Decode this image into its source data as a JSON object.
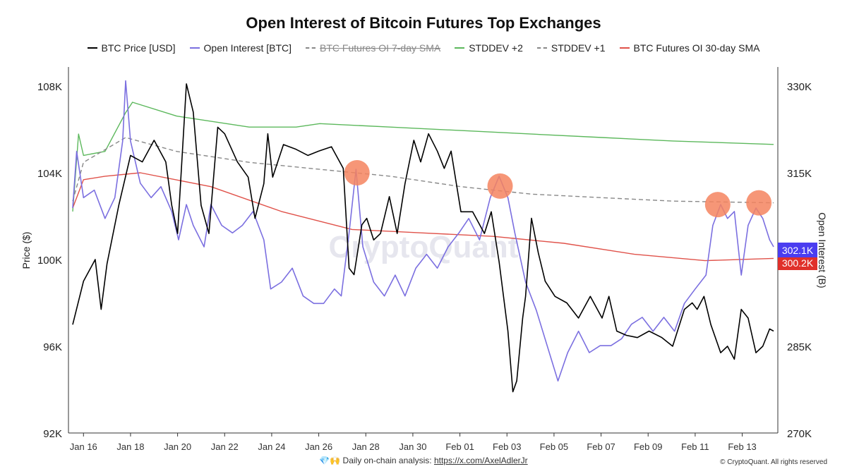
{
  "chart_data": {
    "type": "line",
    "title": "Open Interest of Bitcoin Futures Top Exchanges",
    "ylabel_left": "Price ($)",
    "ylabel_right": "Open Interest (B)",
    "year": 2025,
    "xlim": [
      "2025-01-15T13",
      "2025-02-14T08"
    ],
    "ylim_left": [
      92,
      108.8
    ],
    "ylim_right": [
      270,
      333
    ],
    "x_ticks": [
      "Jan 16",
      "Jan 18",
      "Jan 20",
      "Jan 22",
      "Jan 24",
      "Jan 26",
      "Jan 28",
      "Jan 30",
      "Feb 01",
      "Feb 03",
      "Feb 05",
      "Feb 07",
      "Feb 09",
      "Feb 11",
      "Feb 13"
    ],
    "x_tick_dates": [
      "2025-01-16T00",
      "2025-01-18T00",
      "2025-01-20T00",
      "2025-01-22T00",
      "2025-01-24T00",
      "2025-01-26T00",
      "2025-01-28T00",
      "2025-01-30T00",
      "2025-02-01T00",
      "2025-02-03T00",
      "2025-02-05T00",
      "2025-02-07T00",
      "2025-02-09T00",
      "2025-02-11T00",
      "2025-02-13T00"
    ],
    "y_ticks_left": [
      {
        "v": 108,
        "label": "108K"
      },
      {
        "v": 104,
        "label": "104K"
      },
      {
        "v": 100,
        "label": "100K"
      },
      {
        "v": 96,
        "label": "96K"
      },
      {
        "v": 92,
        "label": "92K"
      }
    ],
    "y_ticks_right": [
      {
        "v": 330,
        "label": "330K"
      },
      {
        "v": 315,
        "label": "315K"
      },
      {
        "v": 285,
        "label": "285K"
      },
      {
        "v": 270,
        "label": "270K"
      }
    ],
    "grid": false,
    "legend_position": "top",
    "watermark": "CryptoQuant",
    "series": [
      {
        "name": "BTC Price [USD]",
        "axis": "left",
        "color": "#000000",
        "dash": false,
        "hidden": false,
        "unit": "K USD",
        "points": [
          [
            "2025-01-15T13",
            97.0
          ],
          [
            "2025-01-16T00",
            99.0
          ],
          [
            "2025-01-16T12",
            100.0
          ],
          [
            "2025-01-16T18",
            97.7
          ],
          [
            "2025-01-17T00",
            99.8
          ],
          [
            "2025-01-17T12",
            102.5
          ],
          [
            "2025-01-18T00",
            104.8
          ],
          [
            "2025-01-18T12",
            104.5
          ],
          [
            "2025-01-19T00",
            105.5
          ],
          [
            "2025-01-19T12",
            104.5
          ],
          [
            "2025-01-19T18",
            102.5
          ],
          [
            "2025-01-20T00",
            101.2
          ],
          [
            "2025-01-20T09",
            108.1
          ],
          [
            "2025-01-20T16",
            106.8
          ],
          [
            "2025-01-21T00",
            102.5
          ],
          [
            "2025-01-21T08",
            101.2
          ],
          [
            "2025-01-21T17",
            106.1
          ],
          [
            "2025-01-22T00",
            105.8
          ],
          [
            "2025-01-22T13",
            104.5
          ],
          [
            "2025-01-23T00",
            103.8
          ],
          [
            "2025-01-23T07",
            101.9
          ],
          [
            "2025-01-23T16",
            103.5
          ],
          [
            "2025-01-23T20",
            105.8
          ],
          [
            "2025-01-24T01",
            103.8
          ],
          [
            "2025-01-24T12",
            105.3
          ],
          [
            "2025-01-25T00",
            105.1
          ],
          [
            "2025-01-25T13",
            104.8
          ],
          [
            "2025-01-26T00",
            105.0
          ],
          [
            "2025-01-26T13",
            105.2
          ],
          [
            "2025-01-27T01",
            104.2
          ],
          [
            "2025-01-27T07",
            99.6
          ],
          [
            "2025-01-27T12",
            99.3
          ],
          [
            "2025-01-27T20",
            101.6
          ],
          [
            "2025-01-28T01",
            101.9
          ],
          [
            "2025-01-28T08",
            100.9
          ],
          [
            "2025-01-28T15",
            101.2
          ],
          [
            "2025-01-29T00",
            102.9
          ],
          [
            "2025-01-29T08",
            101.2
          ],
          [
            "2025-01-29T16",
            103.5
          ],
          [
            "2025-01-30T01",
            105.5
          ],
          [
            "2025-01-30T08",
            104.5
          ],
          [
            "2025-01-30T16",
            105.8
          ],
          [
            "2025-01-31T01",
            105.0
          ],
          [
            "2025-01-31T08",
            104.2
          ],
          [
            "2025-01-31T15",
            105.0
          ],
          [
            "2025-02-01T01",
            102.2
          ],
          [
            "2025-02-01T13",
            102.2
          ],
          [
            "2025-02-02T01",
            101.2
          ],
          [
            "2025-02-02T08",
            102.2
          ],
          [
            "2025-02-02T16",
            99.9
          ],
          [
            "2025-02-03T01",
            96.7
          ],
          [
            "2025-02-03T06",
            93.9
          ],
          [
            "2025-02-03T10",
            94.4
          ],
          [
            "2025-02-03T16",
            97.3
          ],
          [
            "2025-02-03T19",
            98.3
          ],
          [
            "2025-02-04T01",
            101.9
          ],
          [
            "2025-02-04T08",
            100.3
          ],
          [
            "2025-02-04T15",
            99.0
          ],
          [
            "2025-02-05T01",
            98.3
          ],
          [
            "2025-02-05T13",
            98.0
          ],
          [
            "2025-02-06T01",
            97.3
          ],
          [
            "2025-02-06T13",
            98.3
          ],
          [
            "2025-02-07T01",
            97.3
          ],
          [
            "2025-02-07T08",
            98.3
          ],
          [
            "2025-02-07T16",
            96.7
          ],
          [
            "2025-02-08T02",
            96.5
          ],
          [
            "2025-02-08T13",
            96.4
          ],
          [
            "2025-02-09T01",
            96.7
          ],
          [
            "2025-02-09T14",
            96.4
          ],
          [
            "2025-02-10T01",
            96.0
          ],
          [
            "2025-02-10T13",
            97.7
          ],
          [
            "2025-02-10T21",
            98.0
          ],
          [
            "2025-02-11T02",
            97.7
          ],
          [
            "2025-02-11T09",
            98.3
          ],
          [
            "2025-02-11T16",
            97.0
          ],
          [
            "2025-02-12T02",
            95.7
          ],
          [
            "2025-02-12T09",
            96.0
          ],
          [
            "2025-02-12T16",
            95.4
          ],
          [
            "2025-02-12T23",
            97.7
          ],
          [
            "2025-02-13T06",
            97.3
          ],
          [
            "2025-02-13T14",
            95.7
          ],
          [
            "2025-02-13T21",
            96.0
          ],
          [
            "2025-02-14T04",
            96.8
          ],
          [
            "2025-02-14T08",
            96.7
          ]
        ]
      },
      {
        "name": "Open Interest [BTC]",
        "axis": "right",
        "color": "#7b6fe0",
        "dash": false,
        "hidden": false,
        "unit": "K",
        "last_label": "302.1K",
        "label_color": "#4b3df0",
        "points": [
          [
            "2025-01-15T13",
            308.9
          ],
          [
            "2025-01-15T17",
            318.7
          ],
          [
            "2025-01-16T00",
            310.7
          ],
          [
            "2025-01-16T11",
            312.0
          ],
          [
            "2025-01-16T22",
            307.1
          ],
          [
            "2025-01-17T08",
            310.7
          ],
          [
            "2025-01-17T16",
            320.5
          ],
          [
            "2025-01-17T19",
            330.9
          ],
          [
            "2025-01-18T00",
            320.5
          ],
          [
            "2025-01-18T10",
            313.2
          ],
          [
            "2025-01-18T21",
            310.7
          ],
          [
            "2025-01-19T07",
            312.6
          ],
          [
            "2025-01-19T18",
            308.3
          ],
          [
            "2025-01-20T01",
            303.4
          ],
          [
            "2025-01-20T09",
            309.5
          ],
          [
            "2025-01-20T16",
            305.9
          ],
          [
            "2025-01-21T03",
            302.2
          ],
          [
            "2025-01-21T10",
            309.5
          ],
          [
            "2025-01-21T21",
            305.9
          ],
          [
            "2025-01-22T08",
            304.6
          ],
          [
            "2025-01-22T18",
            305.9
          ],
          [
            "2025-01-23T05",
            308.3
          ],
          [
            "2025-01-23T16",
            303.4
          ],
          [
            "2025-01-23T23",
            294.9
          ],
          [
            "2025-01-24T10",
            296.1
          ],
          [
            "2025-01-24T21",
            298.5
          ],
          [
            "2025-01-25T08",
            293.7
          ],
          [
            "2025-01-25T19",
            292.4
          ],
          [
            "2025-01-26T05",
            292.4
          ],
          [
            "2025-01-26T16",
            294.9
          ],
          [
            "2025-01-26T23",
            293.7
          ],
          [
            "2025-01-27T07",
            304.6
          ],
          [
            "2025-01-27T14",
            315.6
          ],
          [
            "2025-01-27T21",
            302.2
          ],
          [
            "2025-01-28T08",
            296.1
          ],
          [
            "2025-01-28T19",
            293.7
          ],
          [
            "2025-01-29T06",
            297.3
          ],
          [
            "2025-01-29T16",
            293.7
          ],
          [
            "2025-01-30T03",
            298.5
          ],
          [
            "2025-01-30T14",
            300.9
          ],
          [
            "2025-01-31T01",
            298.5
          ],
          [
            "2025-01-31T12",
            302.2
          ],
          [
            "2025-01-31T23",
            304.6
          ],
          [
            "2025-02-01T09",
            307.1
          ],
          [
            "2025-02-01T20",
            303.4
          ],
          [
            "2025-02-02T07",
            310.7
          ],
          [
            "2025-02-02T16",
            314.4
          ],
          [
            "2025-02-03T01",
            310.7
          ],
          [
            "2025-02-03T08",
            304.6
          ],
          [
            "2025-02-03T19",
            296.1
          ],
          [
            "2025-02-04T06",
            291.2
          ],
          [
            "2025-02-04T17",
            285.1
          ],
          [
            "2025-02-05T04",
            279.0
          ],
          [
            "2025-02-05T14",
            283.9
          ],
          [
            "2025-02-06T01",
            287.6
          ],
          [
            "2025-02-06T12",
            283.9
          ],
          [
            "2025-02-06T23",
            285.1
          ],
          [
            "2025-02-07T10",
            285.1
          ],
          [
            "2025-02-07T21",
            286.3
          ],
          [
            "2025-02-08T07",
            288.8
          ],
          [
            "2025-02-08T18",
            290.0
          ],
          [
            "2025-02-09T05",
            287.6
          ],
          [
            "2025-02-09T16",
            290.0
          ],
          [
            "2025-02-10T03",
            287.6
          ],
          [
            "2025-02-10T13",
            292.4
          ],
          [
            "2025-02-11T00",
            294.9
          ],
          [
            "2025-02-11T11",
            297.3
          ],
          [
            "2025-02-11T18",
            305.9
          ],
          [
            "2025-02-12T02",
            309.5
          ],
          [
            "2025-02-12T09",
            307.1
          ],
          [
            "2025-02-12T16",
            308.3
          ],
          [
            "2025-02-12T23",
            297.3
          ],
          [
            "2025-02-13T06",
            305.9
          ],
          [
            "2025-02-13T14",
            308.9
          ],
          [
            "2025-02-13T21",
            307.1
          ],
          [
            "2025-02-14T04",
            303.4
          ],
          [
            "2025-02-14T08",
            302.2
          ]
        ]
      },
      {
        "name": "BTC Futures OI 7-day SMA",
        "axis": "right",
        "color": "#888888",
        "dash": true,
        "hidden": true,
        "points": []
      },
      {
        "name": "STDDEV +2",
        "axis": "right",
        "color": "#5cb85c",
        "dash": false,
        "hidden": false,
        "points": [
          [
            "2025-01-15T13",
            308.3
          ],
          [
            "2025-01-15T19",
            321.7
          ],
          [
            "2025-01-16T00",
            318.0
          ],
          [
            "2025-01-16T22",
            318.7
          ],
          [
            "2025-01-17T19",
            325.4
          ],
          [
            "2025-01-18T02",
            327.2
          ],
          [
            "2025-01-19T23",
            324.8
          ],
          [
            "2025-01-23T01",
            322.9
          ],
          [
            "2025-01-25T01",
            322.9
          ],
          [
            "2025-01-26T01",
            323.5
          ],
          [
            "2025-01-29T01",
            322.9
          ],
          [
            "2025-02-01T01",
            322.3
          ],
          [
            "2025-02-04T01",
            321.7
          ],
          [
            "2025-02-07T01",
            321.1
          ],
          [
            "2025-02-10T01",
            320.5
          ],
          [
            "2025-02-14T08",
            319.9
          ]
        ]
      },
      {
        "name": "STDDEV +1",
        "axis": "right",
        "color": "#888888",
        "dash": true,
        "hidden": false,
        "points": [
          [
            "2025-01-15T13",
            310.1
          ],
          [
            "2025-01-16T00",
            316.8
          ],
          [
            "2025-01-17T19",
            321.1
          ],
          [
            "2025-01-19T23",
            318.7
          ],
          [
            "2025-01-23T01",
            316.8
          ],
          [
            "2025-01-26T01",
            315.6
          ],
          [
            "2025-01-29T01",
            314.4
          ],
          [
            "2025-02-01T01",
            312.6
          ],
          [
            "2025-02-04T01",
            311.3
          ],
          [
            "2025-02-07T01",
            310.7
          ],
          [
            "2025-02-10T01",
            310.1
          ],
          [
            "2025-02-14T08",
            309.8
          ]
        ]
      },
      {
        "name": "BTC Futures OI 30-day SMA",
        "axis": "right",
        "color": "#e0524a",
        "dash": false,
        "hidden": false,
        "last_label": "300.2K",
        "label_color": "#e0302a",
        "points": [
          [
            "2025-01-15T13",
            308.9
          ],
          [
            "2025-01-16T00",
            313.8
          ],
          [
            "2025-01-16T22",
            314.4
          ],
          [
            "2025-01-18T10",
            315.0
          ],
          [
            "2025-01-21T10",
            312.6
          ],
          [
            "2025-01-24T10",
            308.3
          ],
          [
            "2025-01-27T10",
            305.2
          ],
          [
            "2025-01-30T10",
            304.6
          ],
          [
            "2025-02-02T10",
            304.0
          ],
          [
            "2025-02-05T10",
            302.8
          ],
          [
            "2025-02-08T10",
            300.9
          ],
          [
            "2025-02-11T10",
            299.8
          ],
          [
            "2025-02-14T08",
            300.2
          ]
        ]
      }
    ],
    "annotations": [
      {
        "type": "circle",
        "x": "2025-01-27T15",
        "y": 315.0,
        "axis": "right",
        "color": "#f4845f"
      },
      {
        "type": "circle",
        "x": "2025-02-02T17",
        "y": 312.7,
        "axis": "right",
        "color": "#f4845f"
      },
      {
        "type": "circle",
        "x": "2025-02-11T23",
        "y": 309.5,
        "axis": "right",
        "color": "#f4845f"
      },
      {
        "type": "circle",
        "x": "2025-02-13T17",
        "y": 309.8,
        "axis": "right",
        "color": "#f4845f"
      }
    ]
  },
  "footer": {
    "emoji": "💎🙌",
    "text": "Daily on-chain analysis: ",
    "link": "https://x.com/AxelAdlerJr"
  },
  "copyright": "© CryptoQuant. All rights reserved"
}
